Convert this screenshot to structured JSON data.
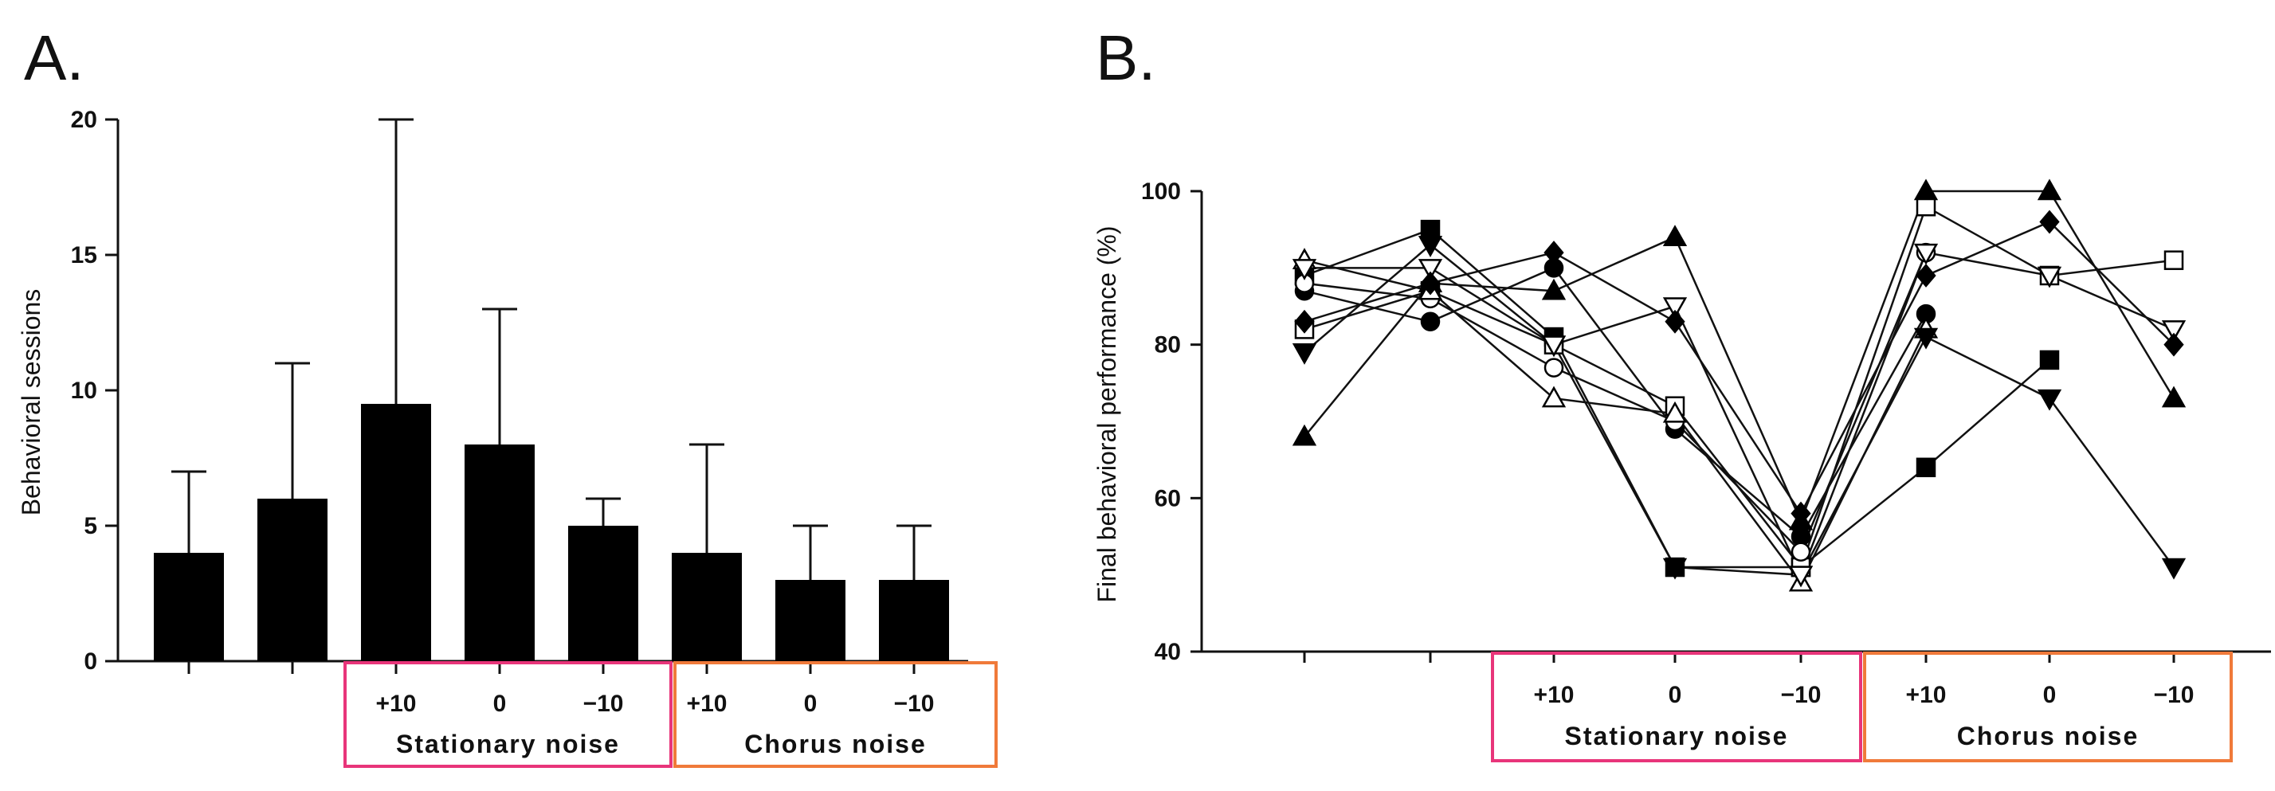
{
  "chart_data": [
    {
      "panel": "A.",
      "type": "bar",
      "categories": [
        "",
        "",
        "+10",
        "0",
        "−10",
        "+10",
        "0",
        "−10"
      ],
      "values": [
        4,
        6,
        9.5,
        8,
        5,
        4,
        3,
        3
      ],
      "error_upper": [
        7,
        11,
        20,
        13,
        6,
        8,
        5,
        5
      ],
      "ylabel": "Behavioral sessions",
      "ylim": [
        0,
        20
      ],
      "yticks": [
        0,
        5,
        10,
        15,
        20
      ],
      "groups": [
        {
          "label": "Stationary noise",
          "color": "#e8357a",
          "categories": [
            2,
            3,
            4
          ]
        },
        {
          "label": "Chorus noise",
          "color": "#f07a3a",
          "categories": [
            5,
            6,
            7
          ]
        }
      ]
    },
    {
      "panel": "B.",
      "type": "line",
      "categories": [
        "",
        "",
        "+10",
        "0",
        "−10",
        "+10",
        "0",
        "−10"
      ],
      "ylabel": "Final behavioral performance (%)",
      "ylim": [
        40,
        100
      ],
      "yticks": [
        40,
        60,
        80,
        100
      ],
      "groups": [
        {
          "label": "Stationary noise",
          "color": "#e8357a",
          "categories": [
            2,
            3,
            4
          ]
        },
        {
          "label": "Chorus noise",
          "color": "#f07a3a",
          "categories": [
            5,
            6,
            7
          ]
        }
      ],
      "series": [
        {
          "name": "filled-square",
          "marker": "square",
          "filled": true,
          "values": [
            89,
            95,
            81,
            51,
            51,
            64,
            78,
            null
          ]
        },
        {
          "name": "open-square",
          "marker": "square",
          "filled": false,
          "values": [
            82,
            87,
            80,
            72,
            51,
            98,
            89,
            91
          ]
        },
        {
          "name": "filled-circle",
          "marker": "circle",
          "filled": true,
          "values": [
            87,
            83,
            90,
            69,
            55,
            84,
            null,
            null
          ]
        },
        {
          "name": "open-circle",
          "marker": "circle",
          "filled": false,
          "values": [
            88,
            86,
            77,
            70,
            53,
            92,
            null,
            null
          ]
        },
        {
          "name": "filled-triangle",
          "marker": "triangle-up",
          "filled": true,
          "values": [
            68,
            88,
            87,
            94,
            57,
            100,
            100,
            73
          ]
        },
        {
          "name": "open-triangle",
          "marker": "triangle-up",
          "filled": false,
          "values": [
            91,
            87,
            73,
            71,
            49,
            82,
            null,
            null
          ]
        },
        {
          "name": "filled-inverted-triangle",
          "marker": "triangle-down",
          "filled": true,
          "values": [
            79,
            93,
            80,
            51,
            50,
            81,
            73,
            51
          ]
        },
        {
          "name": "open-inverted-triangle",
          "marker": "triangle-down",
          "filled": false,
          "values": [
            90,
            90,
            80,
            85,
            50,
            92,
            89,
            82
          ]
        },
        {
          "name": "filled-diamond",
          "marker": "diamond",
          "filled": true,
          "values": [
            83,
            88,
            92,
            83,
            58,
            89,
            96,
            80
          ]
        }
      ]
    }
  ]
}
